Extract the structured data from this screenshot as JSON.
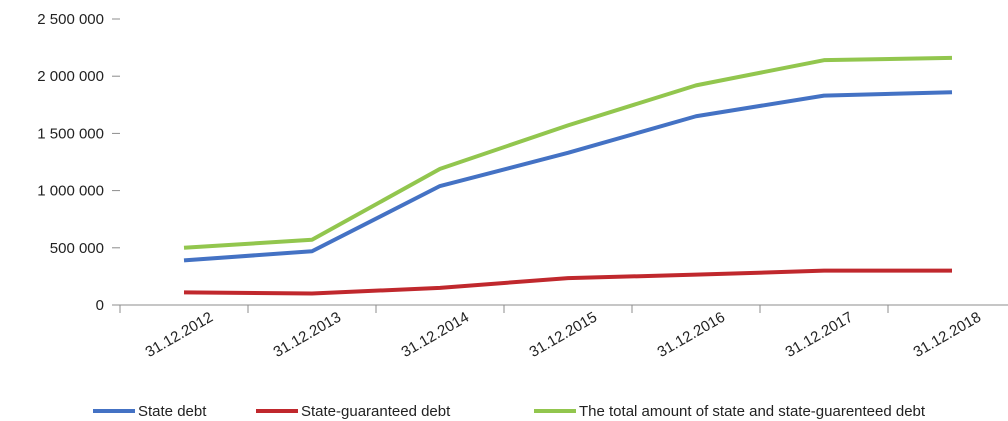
{
  "chart_data": {
    "type": "line",
    "title": "",
    "xlabel": "",
    "ylabel": "",
    "categories": [
      "31.12.2012",
      "31.12.2013",
      "31.12.2014",
      "31.12.2015",
      "31.12.2016",
      "31.12.2017",
      "31.12.2018"
    ],
    "ylim": [
      0,
      2500000
    ],
    "yticks": [
      0,
      500000,
      1000000,
      1500000,
      2000000,
      2500000
    ],
    "ytick_labels": [
      "0",
      "500 000",
      "1 000 000",
      "1 500 000",
      "2 000 000",
      "2 500 000"
    ],
    "grid": false,
    "legend_position": "bottom",
    "series": [
      {
        "name": "State debt",
        "color": "#4472c4",
        "values": [
          390000,
          470000,
          1040000,
          1330000,
          1650000,
          1830000,
          1860000
        ]
      },
      {
        "name": "State-guaranteed debt",
        "color": "#c0282d",
        "values": [
          110000,
          100000,
          150000,
          235000,
          265000,
          300000,
          300000
        ]
      },
      {
        "name": "The total amount of state and state-guarenteed debt",
        "color": "#92c64e",
        "values": [
          500000,
          570000,
          1190000,
          1570000,
          1920000,
          2140000,
          2160000
        ]
      }
    ]
  }
}
